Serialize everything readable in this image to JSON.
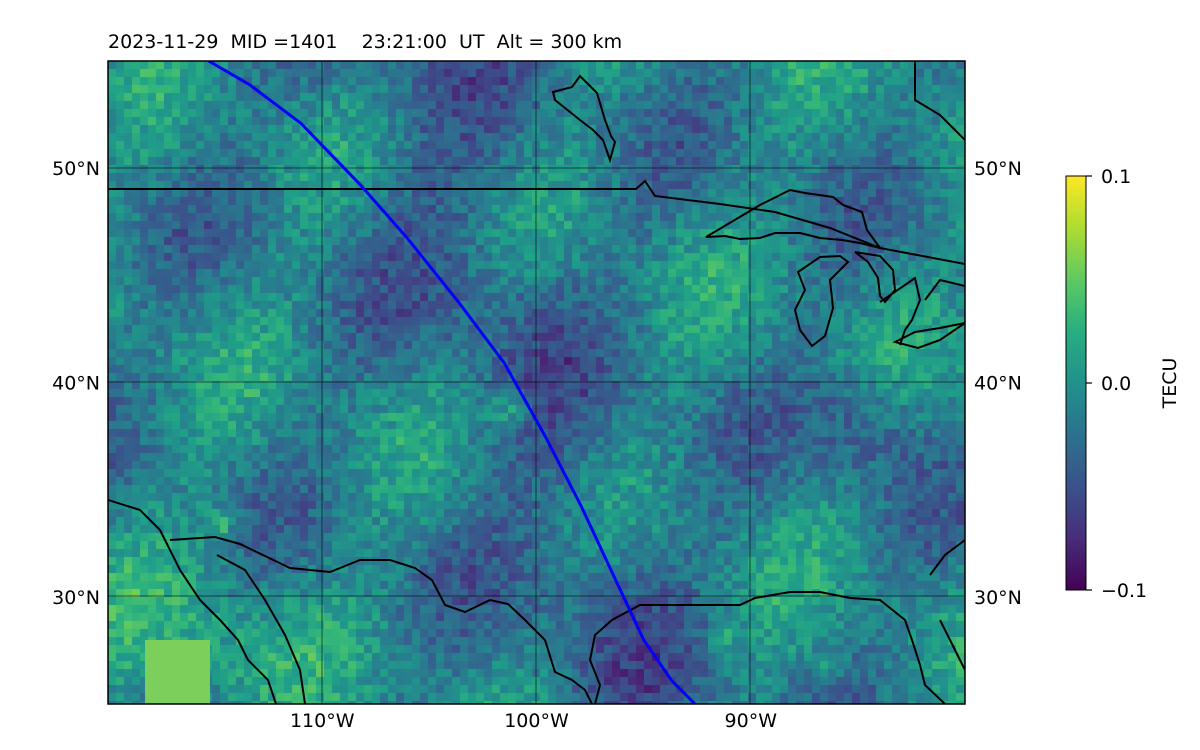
{
  "chart_data": {
    "type": "heatmap",
    "title": "2023-11-29  MID =1401    23:21:00  UT  Alt = 300 km",
    "x": {
      "range": [
        -120,
        -80
      ],
      "ticks": [
        -110,
        -100,
        -90
      ],
      "tick_labels": [
        "110°W",
        "100°W",
        "90°W"
      ]
    },
    "y": {
      "range": [
        25,
        55
      ],
      "ticks": [
        30,
        40,
        50
      ],
      "tick_labels": [
        "30°N",
        "40°N",
        "50°N"
      ]
    },
    "grid": true,
    "colorbar": {
      "label": "TECU",
      "colormap": "viridis",
      "range": [
        -0.1,
        0.1
      ],
      "ticks": [
        0.1,
        0.0,
        -0.1
      ],
      "tick_labels": [
        "0.1",
        "0.0",
        "−0.1"
      ]
    },
    "track": {
      "color": "#0000ff",
      "lonlat": [
        [
          -115.3,
          55.0
        ],
        [
          -113.4,
          53.9
        ],
        [
          -111.0,
          52.1
        ],
        [
          -108.2,
          49.2
        ],
        [
          -106.0,
          46.7
        ],
        [
          -103.6,
          43.7
        ],
        [
          -101.5,
          40.9
        ],
        [
          -99.6,
          37.5
        ],
        [
          -97.9,
          34.2
        ],
        [
          -96.5,
          31.2
        ],
        [
          -95.0,
          28.0
        ],
        [
          -93.7,
          26.1
        ],
        [
          -92.6,
          25.0
        ]
      ]
    },
    "coastline_color": "#000000",
    "colors": {
      "low": "#440154",
      "mid": "#21918c",
      "high": "#fde725",
      "background": "#2a7b8e"
    }
  }
}
